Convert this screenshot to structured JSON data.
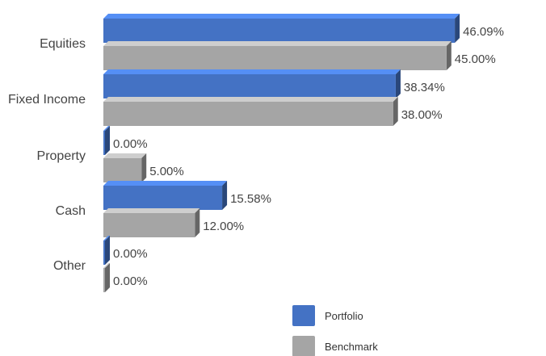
{
  "chart_data": {
    "type": "bar",
    "orientation": "horizontal",
    "style": "3d",
    "categories": [
      "Equities",
      "Fixed Income",
      "Property",
      "Cash",
      "Other"
    ],
    "series": [
      {
        "name": "Portfolio",
        "color": "#4472C4",
        "values": [
          46.09,
          38.34,
          0.0,
          15.58,
          0.0
        ],
        "labels": [
          "46.09%",
          "38.34%",
          "0.00%",
          "15.58%",
          "0.00%"
        ]
      },
      {
        "name": "Benchmark",
        "color": "#A5A5A5",
        "values": [
          45.0,
          38.0,
          5.0,
          12.0,
          0.0
        ],
        "labels": [
          "45.00%",
          "38.00%",
          "5.00%",
          "12.00%",
          "0.00%"
        ]
      }
    ],
    "xlim": [
      0,
      50
    ],
    "grid": false,
    "legend_position": "bottom-right"
  }
}
